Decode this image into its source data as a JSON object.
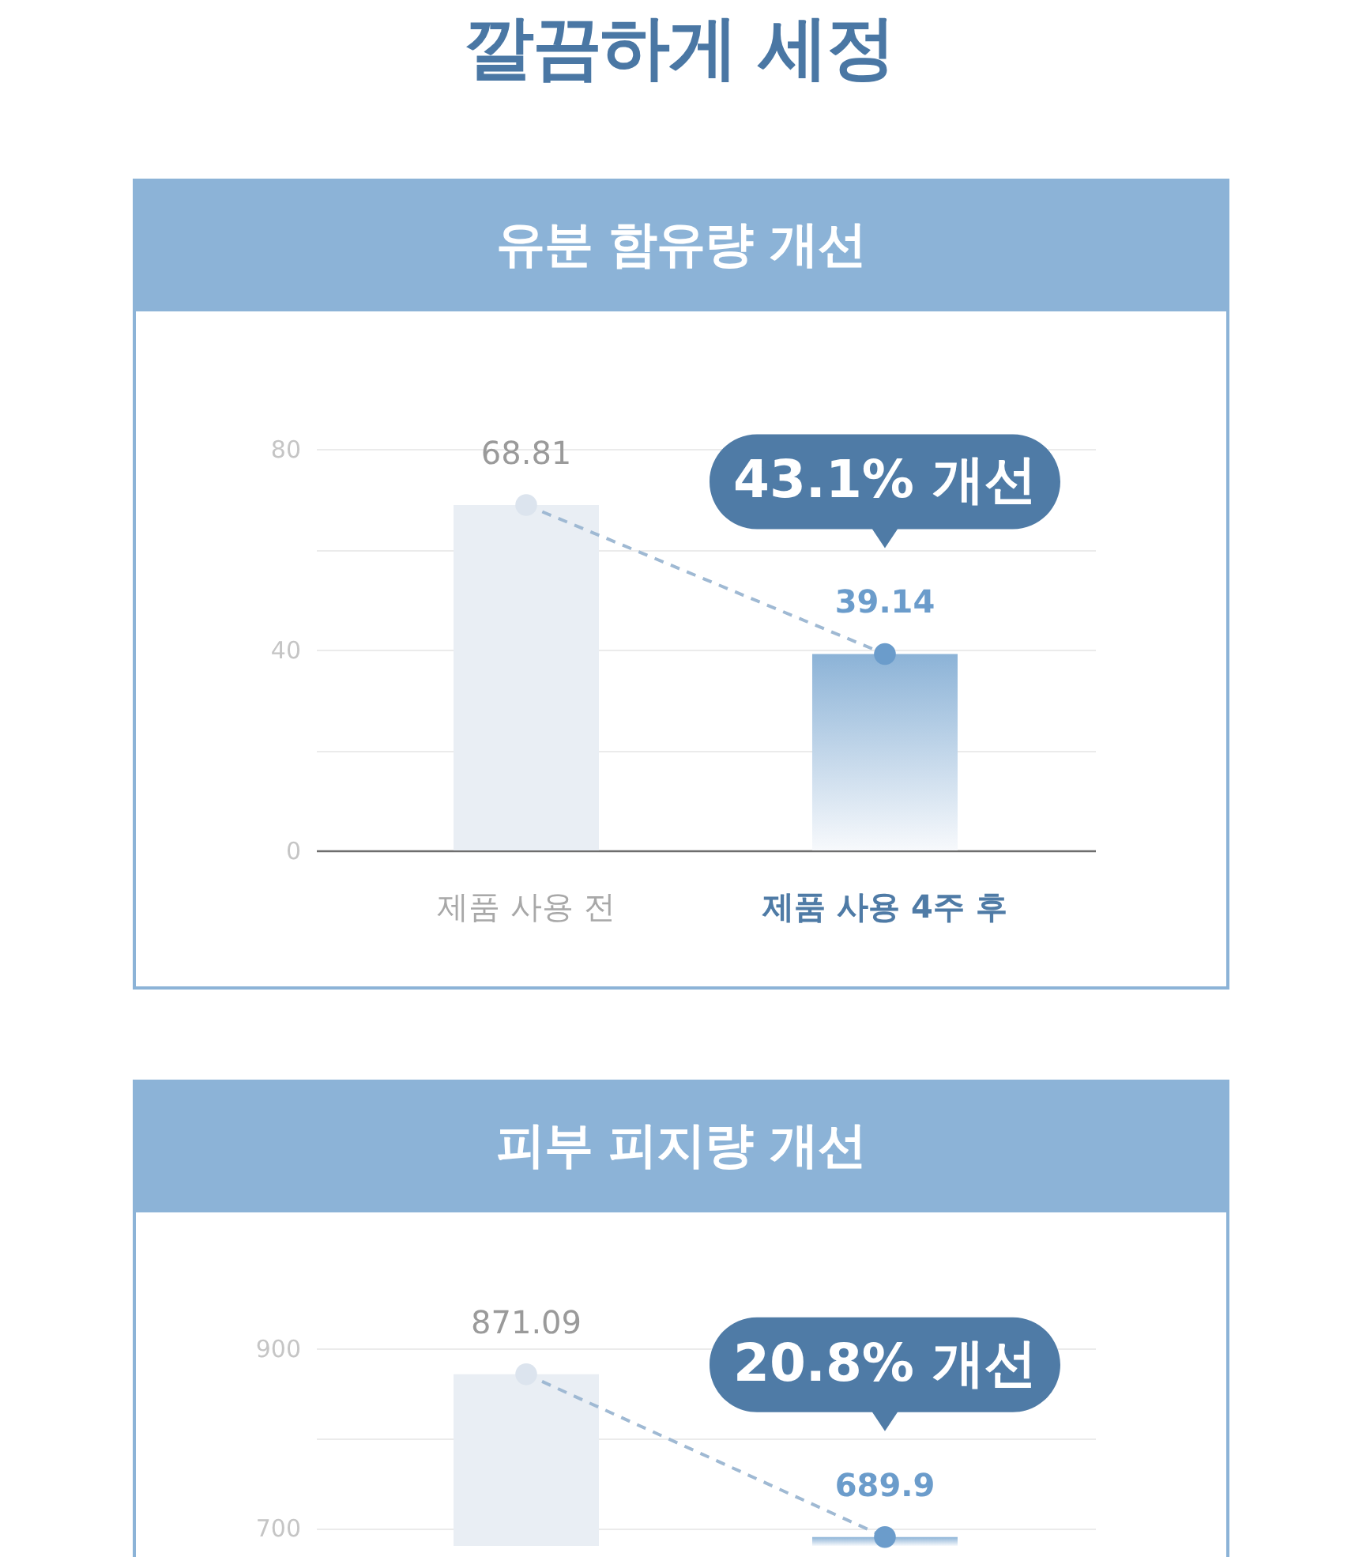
{
  "chart_data": [
    {
      "type": "bar",
      "title": "유분 함유량 개선",
      "annotations": [
        "깔끔하게 세정",
        {
          "text": "43.1% 개선",
          "x": "제품 사용 4주 후",
          "y": 39.14
        }
      ],
      "categories": [
        "제품 사용 전",
        "제품 사용 4주 후"
      ],
      "series": [
        {
          "colors": [
            "#e9eef4",
            "#8cb3d7"
          ],
          "values": [
            68.81,
            39.14
          ]
        },
        {
          "type": "line",
          "color": "#9fb9d3",
          "colors": [
            "#dce4ee",
            "#6b9ccb"
          ],
          "values": [
            68.81,
            39.14
          ],
          "value_labels": [
            "68.81",
            "39.14"
          ]
        }
      ],
      "line_style": "dashed",
      "marker": "circle",
      "ylim": [
        0,
        80
      ],
      "yticks": [
        0,
        {
          "value": 20,
          "label": null
        },
        40,
        {
          "value": 60,
          "label": null
        },
        80
      ],
      "grid": "y"
    },
    {
      "type": "bar",
      "title": "피부 피지량 개선",
      "annotations": [
        {
          "text": "20.8% 개선",
          "y": 689.9
        }
      ],
      "categories": [
        null,
        null
      ],
      "series": [
        {
          "colors": [
            "#e9eef4",
            "#8cb3d7"
          ],
          "values": [
            871.09,
            689.9
          ]
        },
        {
          "type": "line",
          "color": "#9fb9d3",
          "colors": [
            "#dce4ee",
            "#6b9ccb"
          ],
          "values": [
            871.09,
            689.9
          ],
          "value_labels": [
            "871.09",
            "689.9"
          ]
        }
      ],
      "line_style": "dashed",
      "marker": "circle",
      "ylim": [
        680,
        900
      ],
      "yticks": [
        700,
        {
          "value": 800,
          "label": null
        },
        900
      ],
      "grid": "y",
      "tick_labels": "y"
    }
  ]
}
